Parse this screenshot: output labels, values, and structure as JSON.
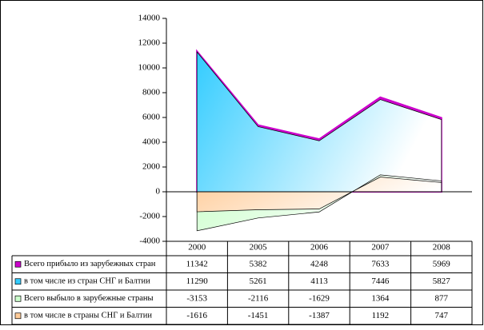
{
  "chart_data": {
    "type": "area",
    "categories": [
      "2000",
      "2005",
      "2006",
      "2007",
      "2008"
    ],
    "series": [
      {
        "name": "Всего прибыло из зарубежных стран",
        "color": "#cc00cc",
        "values": [
          11342,
          5382,
          4248,
          7633,
          5969
        ]
      },
      {
        "name": "в том числе из стран СНГ и Балтии",
        "color": "#33ccff",
        "values": [
          11290,
          5261,
          4113,
          7446,
          5827
        ]
      },
      {
        "name": "Всего выбыло в зарубежные страны",
        "color": "#ccffcc",
        "values": [
          -3153,
          -2116,
          -1629,
          1364,
          877
        ]
      },
      {
        "name": "в том числе в страны СНГ и Балтии",
        "color": "#ffcc99",
        "values": [
          -1616,
          -1451,
          -1387,
          1192,
          747
        ]
      }
    ],
    "ylim": [
      -4000,
      14000
    ],
    "yticks": [
      -4000,
      -2000,
      0,
      2000,
      4000,
      6000,
      8000,
      10000,
      12000,
      14000
    ]
  }
}
